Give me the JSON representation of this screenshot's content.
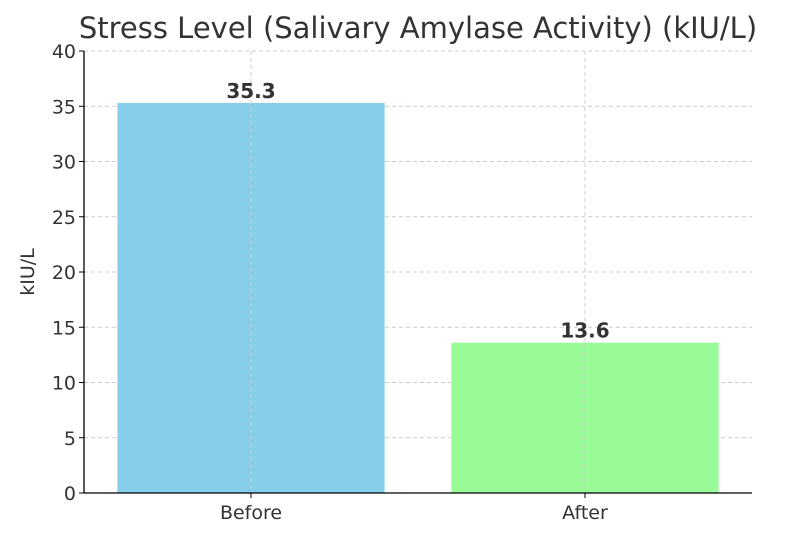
{
  "chart_data": {
    "type": "bar",
    "title": "Stress Level (Salivary Amylase Activity) (kIU/L)",
    "xlabel": "",
    "ylabel": "kIU/L",
    "categories": [
      "Before",
      "After"
    ],
    "values": [
      35.3,
      13.6
    ],
    "value_labels": [
      "35.3",
      "13.6"
    ],
    "colors": [
      "#87CEEB",
      "#98FB98"
    ],
    "ylim": [
      0,
      40
    ],
    "yticks": [
      0,
      5,
      10,
      15,
      20,
      25,
      30,
      35,
      40
    ],
    "ytick_labels": [
      "0",
      "5",
      "10",
      "15",
      "20",
      "25",
      "30",
      "35",
      "40"
    ],
    "grid": true,
    "legend": "none"
  }
}
